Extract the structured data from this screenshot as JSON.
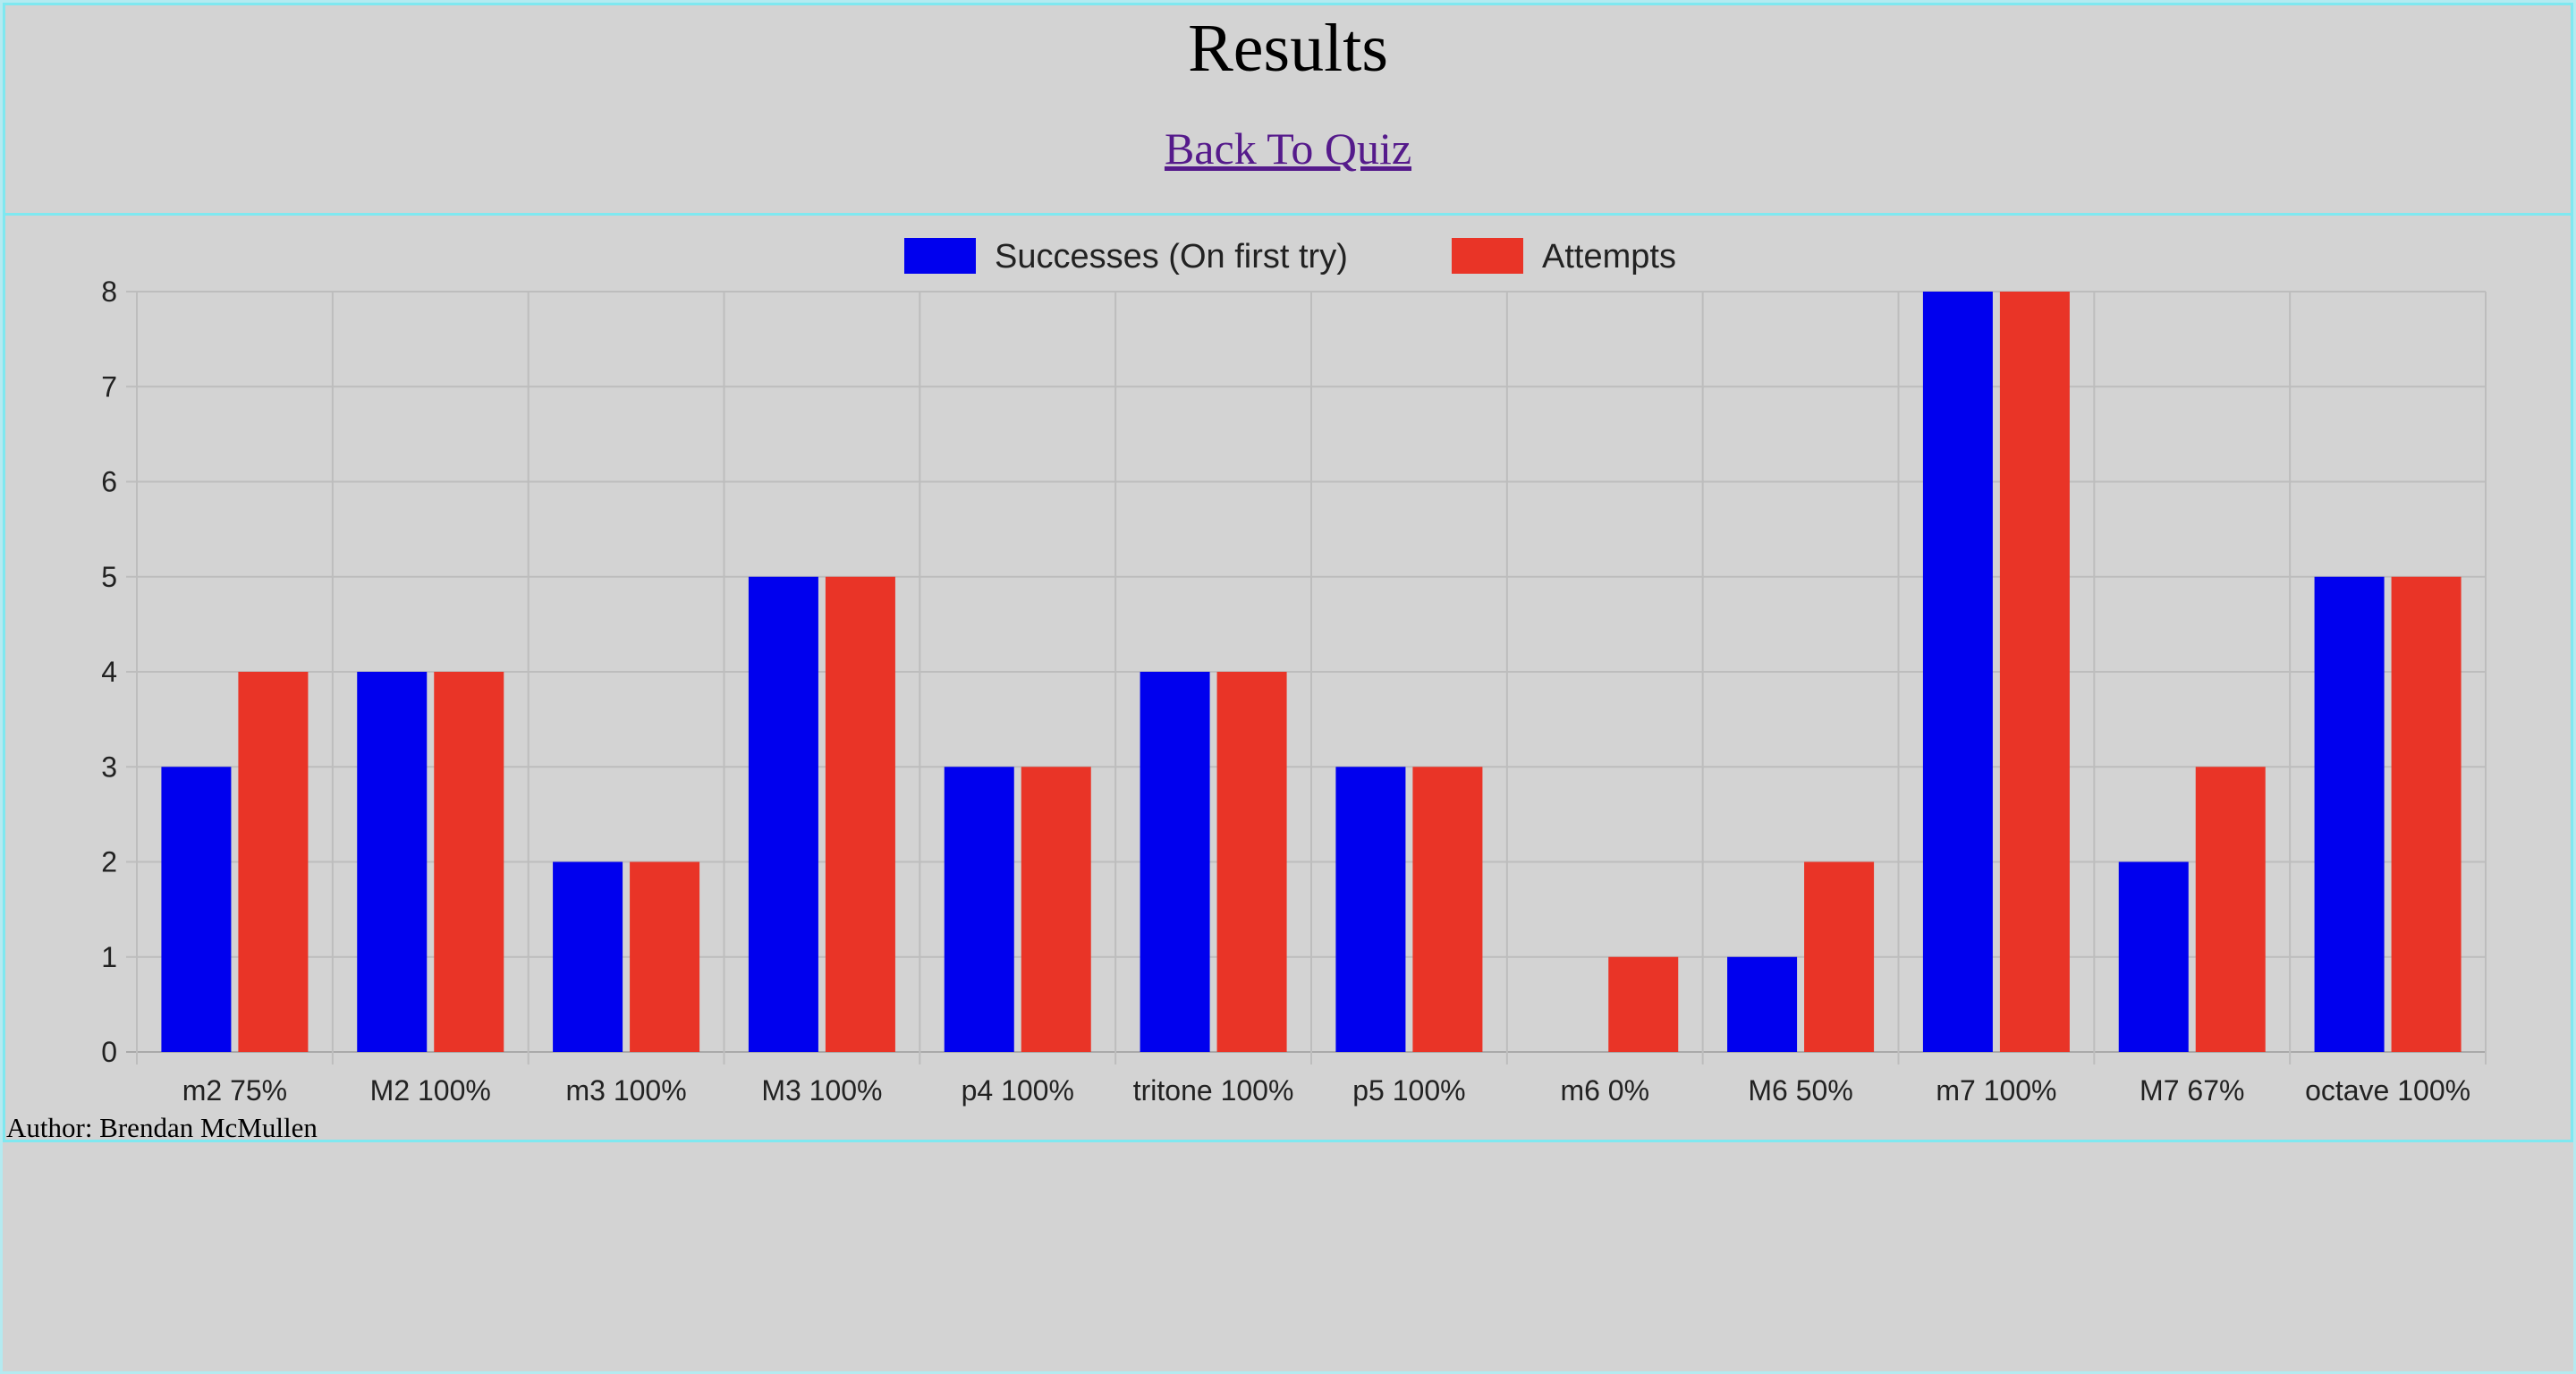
{
  "page": {
    "title": "Results",
    "back_link": "Back To Quiz",
    "author": "Author: Brendan McMullen"
  },
  "chart_data": {
    "type": "bar",
    "categories": [
      "m2 75%",
      "M2 100%",
      "m3 100%",
      "M3 100%",
      "p4 100%",
      "tritone 100%",
      "p5 100%",
      "m6 0%",
      "M6 50%",
      "m7 100%",
      "M7 67%",
      "octave 100%"
    ],
    "series": [
      {
        "name": "Successes (On first try)",
        "color": "#0000ee",
        "values": [
          3,
          4,
          2,
          5,
          3,
          4,
          3,
          0,
          1,
          8,
          2,
          5
        ]
      },
      {
        "name": "Attempts",
        "color": "#e93427",
        "values": [
          4,
          4,
          2,
          5,
          3,
          4,
          3,
          1,
          2,
          8,
          3,
          5
        ]
      }
    ],
    "ylim": [
      0,
      8
    ],
    "yticks": [
      0,
      1,
      2,
      3,
      4,
      5,
      6,
      7,
      8
    ],
    "grid": true,
    "legend_position": "top-center",
    "title": "",
    "xlabel": "",
    "ylabel": ""
  }
}
